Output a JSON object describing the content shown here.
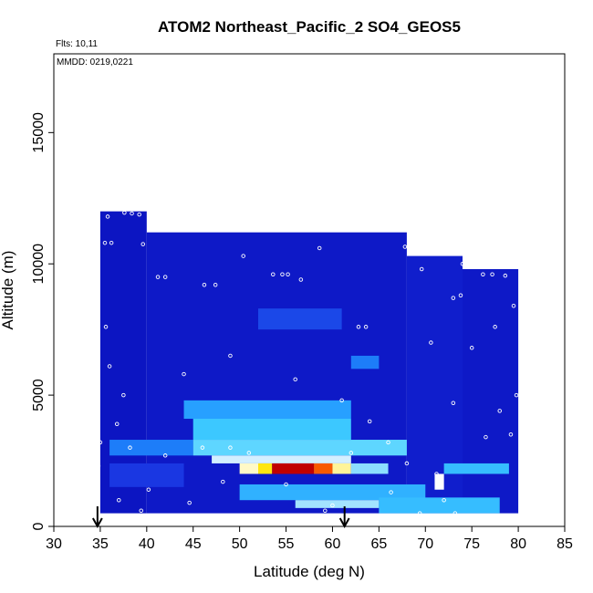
{
  "chart_data": {
    "type": "heatmap",
    "title": "ATOM2 Northeast_Pacific_2 SO4_GEOS5",
    "annotations": [
      "Flts: 10,11",
      "MMDD: 0219,0221"
    ],
    "xlabel": "Latitude (deg N)",
    "ylabel": "Altitude (m)",
    "xlim": [
      30,
      85
    ],
    "ylim": [
      0,
      18000
    ],
    "xticks": [
      30,
      35,
      40,
      45,
      50,
      55,
      60,
      65,
      70,
      75,
      80,
      85
    ],
    "yticks": [
      0,
      5000,
      10000,
      15000
    ],
    "grid": false,
    "arrows_at_latitude": [
      34.7,
      61.3
    ],
    "colormap": [
      "#0000aa",
      "#1a2fe0",
      "#1e90ff",
      "#40d0ff",
      "#bfe8ff",
      "#ffffff",
      "#ffe400",
      "#ff7000",
      "#dd0000",
      "#7a0000"
    ],
    "highlight_value_max": 1.0,
    "regions": [
      {
        "lat": [
          35,
          40
        ],
        "alt": [
          500,
          12000
        ],
        "value": 0.05
      },
      {
        "lat": [
          40,
          68
        ],
        "alt": [
          500,
          11200
        ],
        "value": 0.06
      },
      {
        "lat": [
          68,
          74
        ],
        "alt": [
          500,
          10300
        ],
        "value": 0.07
      },
      {
        "lat": [
          74,
          80
        ],
        "alt": [
          500,
          9800
        ],
        "value": 0.06
      },
      {
        "lat": [
          52,
          61
        ],
        "alt": [
          7500,
          8300
        ],
        "value": 0.14
      },
      {
        "lat": [
          62,
          65
        ],
        "alt": [
          6000,
          6500
        ],
        "value": 0.2
      },
      {
        "lat": [
          44,
          62
        ],
        "alt": [
          4100,
          4800
        ],
        "value": 0.25
      },
      {
        "lat": [
          45,
          62
        ],
        "alt": [
          3300,
          4100
        ],
        "value": 0.32
      },
      {
        "lat": [
          36,
          45
        ],
        "alt": [
          2700,
          3300
        ],
        "value": 0.2
      },
      {
        "lat": [
          45,
          68
        ],
        "alt": [
          2700,
          3300
        ],
        "value": 0.36
      },
      {
        "lat": [
          47,
          62
        ],
        "alt": [
          2400,
          2700
        ],
        "value": 0.48
      },
      {
        "lat": [
          50,
          52
        ],
        "alt": [
          2000,
          2400
        ],
        "value": 0.58
      },
      {
        "lat": [
          52,
          53.5
        ],
        "alt": [
          2000,
          2400
        ],
        "value": 0.66
      },
      {
        "lat": [
          53.5,
          58
        ],
        "alt": [
          2000,
          2400
        ],
        "value": 0.92
      },
      {
        "lat": [
          58,
          60
        ],
        "alt": [
          2000,
          2400
        ],
        "value": 0.8
      },
      {
        "lat": [
          60,
          62
        ],
        "alt": [
          2000,
          2400
        ],
        "value": 0.6
      },
      {
        "lat": [
          62,
          66
        ],
        "alt": [
          2000,
          2400
        ],
        "value": 0.4
      },
      {
        "lat": [
          71,
          72
        ],
        "alt": [
          1400,
          2000
        ],
        "value": 0.55
      },
      {
        "lat": [
          72,
          79
        ],
        "alt": [
          2000,
          2400
        ],
        "value": 0.3
      },
      {
        "lat": [
          50,
          70
        ],
        "alt": [
          1000,
          1600
        ],
        "value": 0.28
      },
      {
        "lat": [
          56,
          65
        ],
        "alt": [
          700,
          1000
        ],
        "value": 0.42
      },
      {
        "lat": [
          65,
          78
        ],
        "alt": [
          500,
          1100
        ],
        "value": 0.3
      },
      {
        "lat": [
          36,
          44
        ],
        "alt": [
          1500,
          2400
        ],
        "value": 0.12
      }
    ],
    "flight_points": [
      [
        35.8,
        11800
      ],
      [
        37.6,
        11950
      ],
      [
        38.4,
        11920
      ],
      [
        39.2,
        11880
      ],
      [
        35.5,
        10800
      ],
      [
        36.2,
        10800
      ],
      [
        39.6,
        10750
      ],
      [
        41.2,
        9500
      ],
      [
        42.0,
        9500
      ],
      [
        46.2,
        9200
      ],
      [
        47.4,
        9200
      ],
      [
        50.4,
        10300
      ],
      [
        53.6,
        9600
      ],
      [
        54.6,
        9600
      ],
      [
        55.2,
        9600
      ],
      [
        56.6,
        9400
      ],
      [
        58.6,
        10600
      ],
      [
        67.8,
        10650
      ],
      [
        68.6,
        10650
      ],
      [
        69.6,
        9800
      ],
      [
        74.0,
        10000
      ],
      [
        76.2,
        9600
      ],
      [
        77.2,
        9600
      ],
      [
        78.6,
        9550
      ],
      [
        73.8,
        8800
      ],
      [
        73.0,
        8700
      ],
      [
        70.6,
        7000
      ],
      [
        62.8,
        7600
      ],
      [
        63.6,
        7600
      ],
      [
        35.6,
        7600
      ],
      [
        36.0,
        6100
      ],
      [
        37.5,
        5000
      ],
      [
        36.8,
        3900
      ],
      [
        35.0,
        3200
      ],
      [
        34.8,
        2300
      ],
      [
        38.2,
        3000
      ],
      [
        42.0,
        2700
      ],
      [
        46.0,
        3000
      ],
      [
        49.0,
        3000
      ],
      [
        51.0,
        2800
      ],
      [
        55.0,
        1600
      ],
      [
        60.0,
        800
      ],
      [
        62.0,
        2800
      ],
      [
        64.0,
        4000
      ],
      [
        66.0,
        3200
      ],
      [
        68.0,
        2400
      ],
      [
        71.2,
        2000
      ],
      [
        72.0,
        1000
      ],
      [
        73.2,
        500
      ],
      [
        76.5,
        3400
      ],
      [
        79.2,
        3500
      ],
      [
        79.8,
        5000
      ],
      [
        78.0,
        4400
      ],
      [
        73.0,
        4700
      ],
      [
        75.0,
        6800
      ],
      [
        77.5,
        7600
      ],
      [
        79.5,
        8400
      ],
      [
        44.0,
        5800
      ],
      [
        49.0,
        6500
      ],
      [
        56.0,
        5600
      ],
      [
        61.0,
        4800
      ],
      [
        44.6,
        900
      ],
      [
        48.2,
        1700
      ],
      [
        40.2,
        1400
      ],
      [
        39.4,
        600
      ],
      [
        37.0,
        1000
      ],
      [
        59.2,
        600
      ],
      [
        66.3,
        1300
      ],
      [
        69.4,
        500
      ]
    ]
  }
}
